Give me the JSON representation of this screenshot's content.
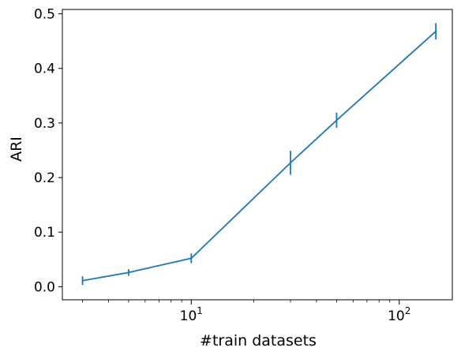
{
  "chart_data": {
    "type": "line",
    "title": "",
    "xlabel": "#train datasets",
    "ylabel": "ARI",
    "xscale": "log",
    "xlim": [
      2.4,
      180
    ],
    "ylim": [
      -0.024,
      0.508
    ],
    "x_ticks": [
      {
        "value": 10,
        "base": "10",
        "exp": "1"
      },
      {
        "value": 100,
        "base": "10",
        "exp": "2"
      }
    ],
    "y_ticks": [
      {
        "value": 0.0,
        "label": "0.0"
      },
      {
        "value": 0.1,
        "label": "0.1"
      },
      {
        "value": 0.2,
        "label": "0.2"
      },
      {
        "value": 0.3,
        "label": "0.3"
      },
      {
        "value": 0.4,
        "label": "0.4"
      },
      {
        "value": 0.5,
        "label": "0.5"
      }
    ],
    "grid": false,
    "legend": "none",
    "series": [
      {
        "color": "#1f77b4",
        "x": [
          3,
          5,
          10,
          30,
          50,
          150
        ],
        "y": [
          0.011,
          0.026,
          0.052,
          0.227,
          0.305,
          0.468
        ],
        "yerr": [
          0.008,
          0.006,
          0.009,
          0.022,
          0.014,
          0.015
        ]
      }
    ]
  }
}
